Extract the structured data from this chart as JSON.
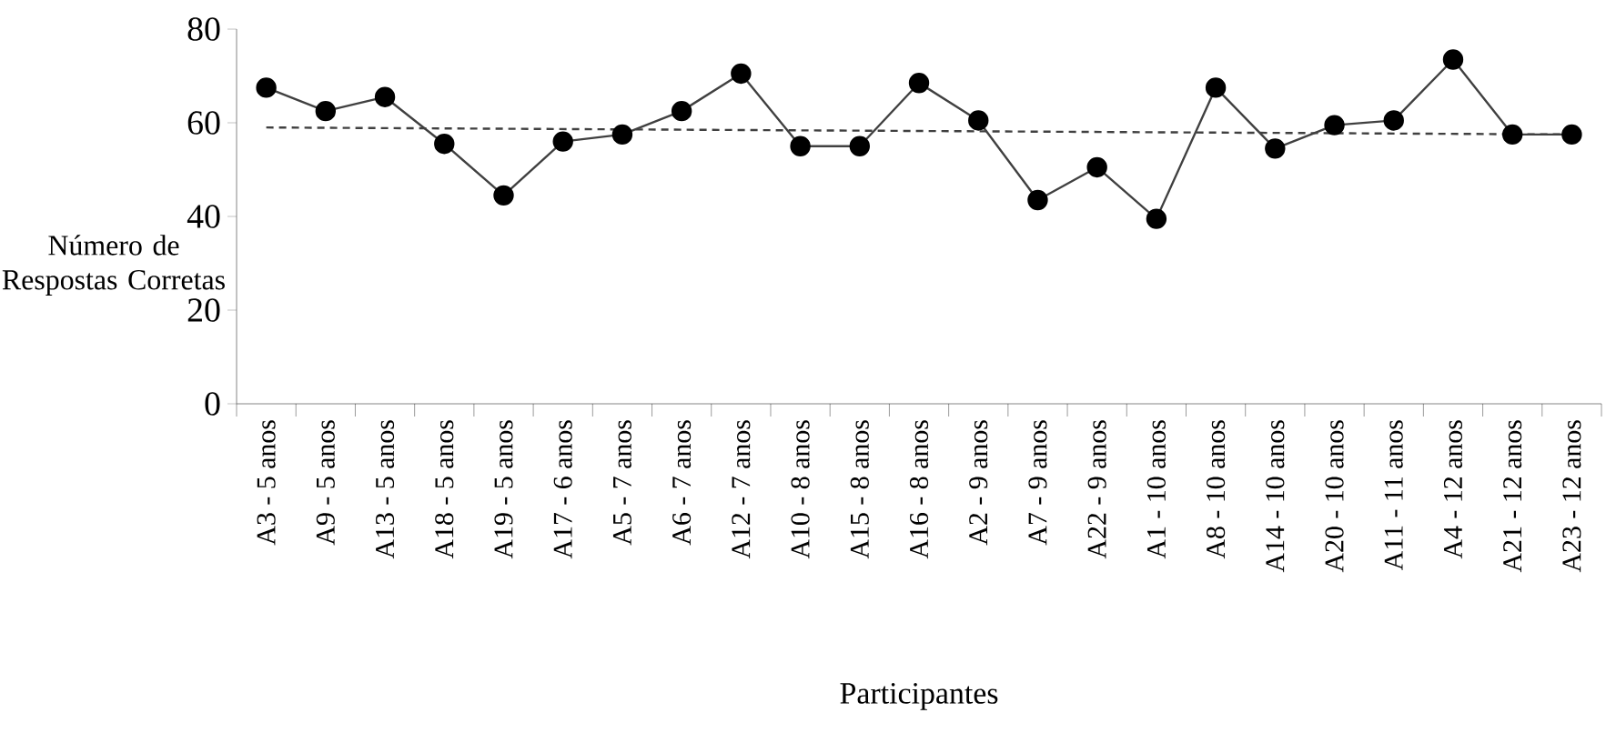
{
  "chart_data": {
    "type": "line",
    "xlabel": "Participantes",
    "ylabel": "Número de Respostas Corretas",
    "categories": [
      "A3 - 5 anos",
      "A9 - 5 anos",
      "A13 - 5 anos",
      "A18 - 5 anos",
      "A19 - 5 anos",
      "A17 - 6 anos",
      "A5 - 7 anos",
      "A6 - 7 anos",
      "A12 - 7 anos",
      "A10 - 8 anos",
      "A15 - 8 anos",
      "A16 - 8 anos",
      "A2 - 9 anos",
      "A7 - 9 anos",
      "A22 - 9 anos",
      "A1 - 10 anos",
      "A8 - 10 anos",
      "A14 - 10 anos",
      "A20 - 10 anos",
      "A11 - 11 anos",
      "A4 - 12 anos",
      "A21 - 12 anos",
      "A23 - 12 anos"
    ],
    "series": [
      {
        "color": "#404040",
        "marker": "circle",
        "line_style": "solid",
        "values": [
          67.5,
          62.5,
          65.5,
          55.5,
          44.5,
          56,
          57.5,
          62.5,
          70.5,
          55,
          55,
          68.5,
          60.5,
          43.5,
          50.5,
          39.5,
          67.5,
          54.5,
          59.5,
          60.5,
          73.5,
          57.5,
          57.5
        ]
      },
      {
        "type": "line",
        "color": "#404040",
        "line_style": "dashed",
        "x": [
          "A3 - 5 anos",
          "A23 - 12 anos"
        ],
        "values": [
          59,
          57.5
        ]
      }
    ],
    "ylim": [
      0,
      80
    ],
    "yticks": [
      0,
      20,
      40,
      60,
      80
    ],
    "grid": false
  }
}
